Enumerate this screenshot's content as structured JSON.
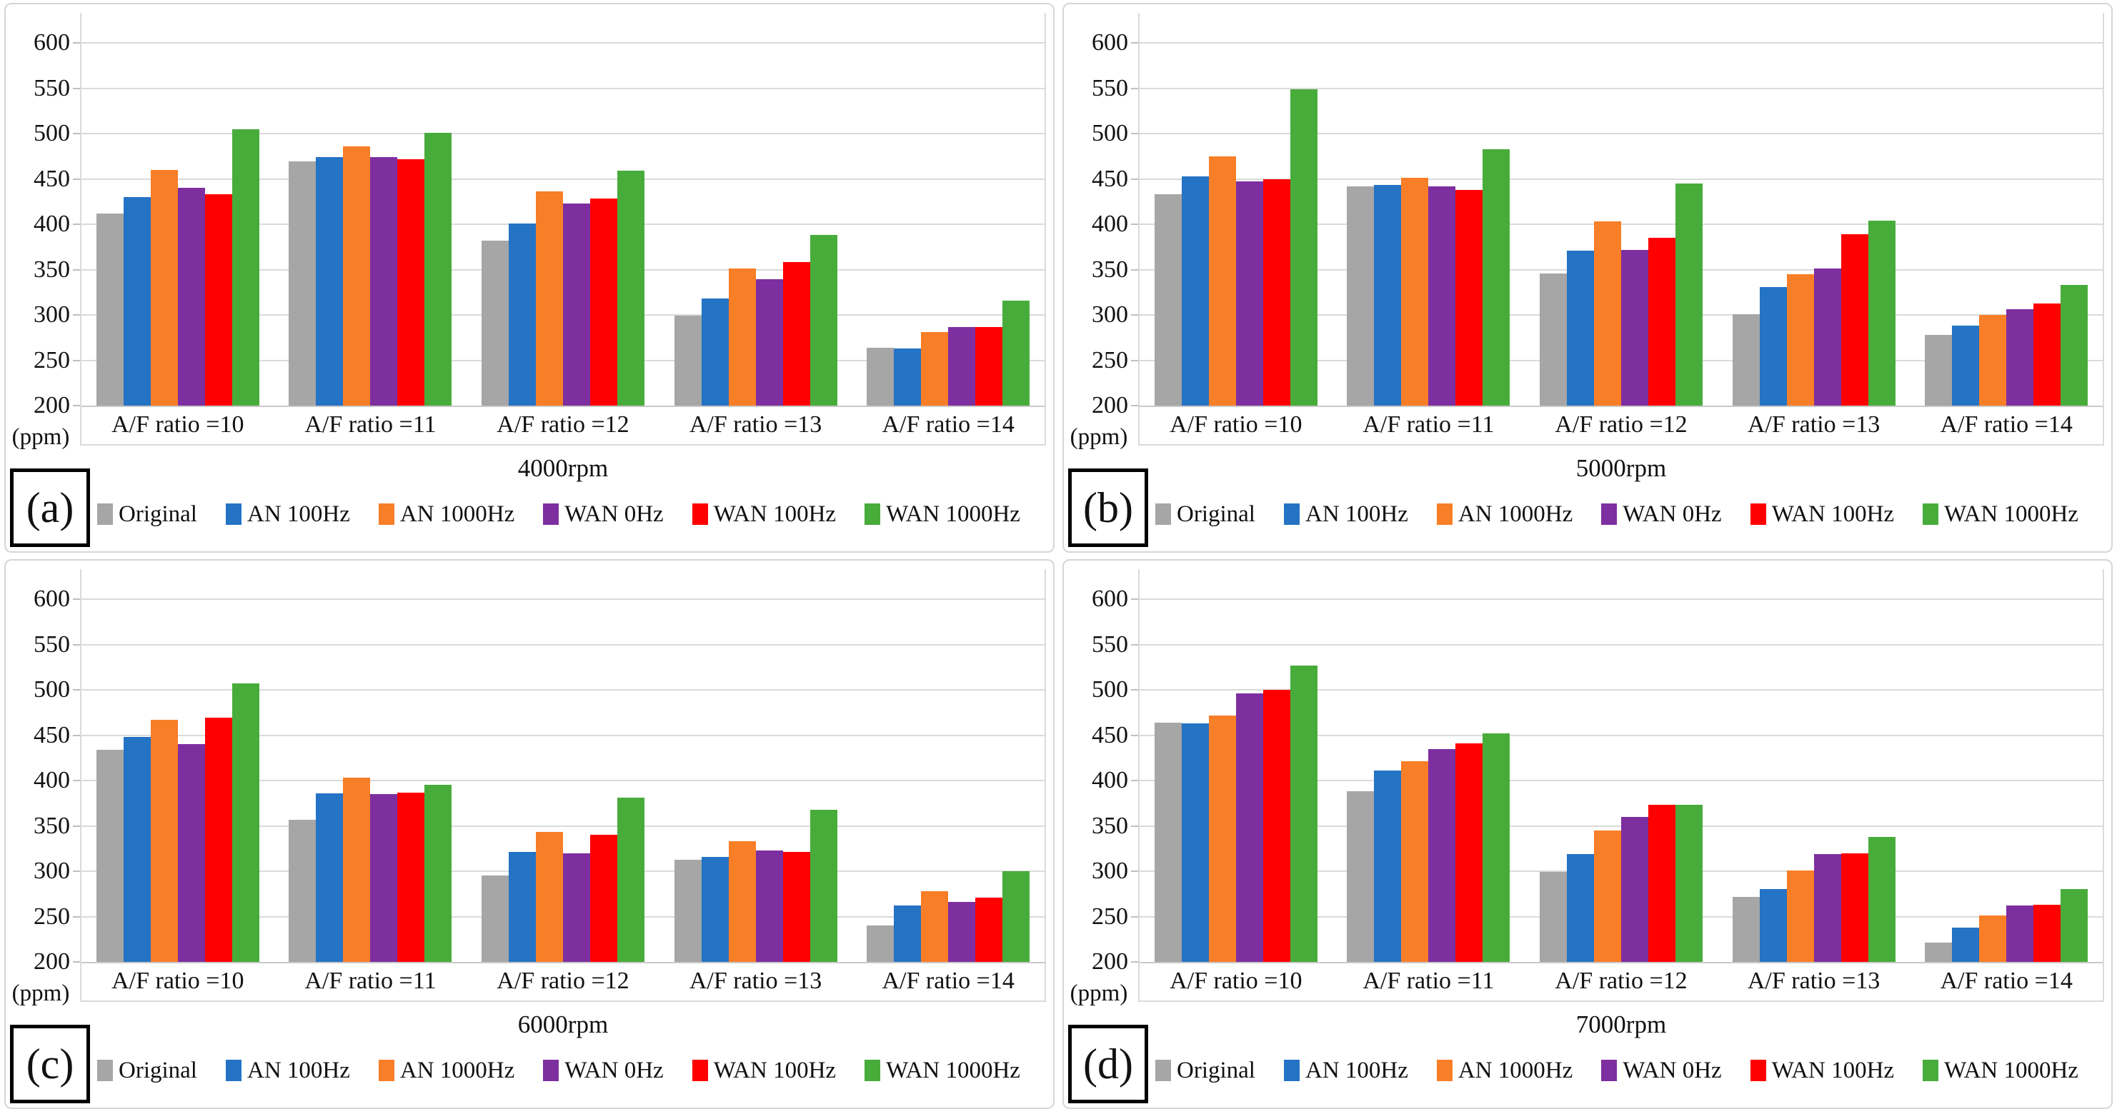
{
  "figure": {
    "y_axis_unit": "(ppm)",
    "series_names": [
      "Original",
      "AN 100Hz",
      "AN 1000Hz",
      "WAN 0Hz",
      "WAN 100Hz",
      "WAN 1000Hz"
    ],
    "series_colors": [
      "#A6A6A6",
      "#2473C5",
      "#F87E27",
      "#7D2FA0",
      "#FE0000",
      "#48AC3B"
    ],
    "gridline_color": "#DADADA"
  },
  "chart_data": [
    {
      "type": "bar",
      "panel_label": "(a)",
      "title": "4000rpm",
      "xlabel": "",
      "ylabel": "(ppm)",
      "ylim": [
        200,
        633
      ],
      "yticks": [
        600,
        550,
        500,
        450,
        400,
        350,
        300,
        250,
        200
      ],
      "grid": true,
      "legend_position": "bottom",
      "categories": [
        "A/F ratio =10",
        "A/F ratio =11",
        "A/F ratio =12",
        "A/F ratio =13",
        "A/F ratio =14"
      ],
      "series": [
        {
          "name": "Original",
          "color": "#A6A6A6",
          "values": [
            412,
            469,
            382,
            299,
            264
          ]
        },
        {
          "name": "AN 100Hz",
          "color": "#2473C5",
          "values": [
            430,
            474,
            401,
            318,
            263
          ]
        },
        {
          "name": "AN 1000Hz",
          "color": "#F87E27",
          "values": [
            460,
            486,
            436,
            351,
            281
          ]
        },
        {
          "name": "WAN 0Hz",
          "color": "#7D2FA0",
          "values": [
            440,
            474,
            423,
            339,
            287
          ]
        },
        {
          "name": "WAN 100Hz",
          "color": "#FE0000",
          "values": [
            433,
            472,
            428,
            358,
            287
          ]
        },
        {
          "name": "WAN 1000Hz",
          "color": "#48AC3B",
          "values": [
            505,
            501,
            459,
            388,
            316
          ]
        }
      ]
    },
    {
      "type": "bar",
      "panel_label": "(b)",
      "title": "5000rpm",
      "xlabel": "",
      "ylabel": "(ppm)",
      "ylim": [
        200,
        633
      ],
      "yticks": [
        600,
        550,
        500,
        450,
        400,
        350,
        300,
        250,
        200
      ],
      "grid": true,
      "legend_position": "bottom",
      "categories": [
        "A/F ratio =10",
        "A/F ratio =11",
        "A/F ratio =12",
        "A/F ratio =13",
        "A/F ratio =14"
      ],
      "series": [
        {
          "name": "Original",
          "color": "#A6A6A6",
          "values": [
            433,
            442,
            346,
            301,
            278
          ]
        },
        {
          "name": "AN 100Hz",
          "color": "#2473C5",
          "values": [
            453,
            443,
            371,
            331,
            288
          ]
        },
        {
          "name": "AN 1000Hz",
          "color": "#F87E27",
          "values": [
            475,
            451,
            403,
            345,
            300
          ]
        },
        {
          "name": "WAN 0Hz",
          "color": "#7D2FA0",
          "values": [
            447,
            442,
            372,
            351,
            306
          ]
        },
        {
          "name": "WAN 100Hz",
          "color": "#FE0000",
          "values": [
            450,
            438,
            385,
            389,
            313
          ]
        },
        {
          "name": "WAN 1000Hz",
          "color": "#48AC3B",
          "values": [
            549,
            483,
            445,
            404,
            333
          ]
        }
      ]
    },
    {
      "type": "bar",
      "panel_label": "(c)",
      "title": "6000rpm",
      "xlabel": "",
      "ylabel": "(ppm)",
      "ylim": [
        200,
        633
      ],
      "yticks": [
        600,
        550,
        500,
        450,
        400,
        350,
        300,
        250,
        200
      ],
      "grid": true,
      "legend_position": "bottom",
      "categories": [
        "A/F ratio =10",
        "A/F ratio =11",
        "A/F ratio =12",
        "A/F ratio =13",
        "A/F ratio =14"
      ],
      "series": [
        {
          "name": "Original",
          "color": "#A6A6A6",
          "values": [
            434,
            357,
            295,
            313,
            240
          ]
        },
        {
          "name": "AN 100Hz",
          "color": "#2473C5",
          "values": [
            448,
            386,
            321,
            316,
            262
          ]
        },
        {
          "name": "AN 1000Hz",
          "color": "#F87E27",
          "values": [
            467,
            403,
            343,
            333,
            278
          ]
        },
        {
          "name": "WAN 0Hz",
          "color": "#7D2FA0",
          "values": [
            440,
            385,
            320,
            323,
            266
          ]
        },
        {
          "name": "WAN 100Hz",
          "color": "#FE0000",
          "values": [
            469,
            387,
            340,
            321,
            271
          ]
        },
        {
          "name": "WAN 1000Hz",
          "color": "#48AC3B",
          "values": [
            507,
            395,
            381,
            368,
            300
          ]
        }
      ]
    },
    {
      "type": "bar",
      "panel_label": "(d)",
      "title": "7000rpm",
      "xlabel": "",
      "ylabel": "(ppm)",
      "ylim": [
        200,
        633
      ],
      "yticks": [
        600,
        550,
        500,
        450,
        400,
        350,
        300,
        250,
        200
      ],
      "grid": true,
      "legend_position": "bottom",
      "categories": [
        "A/F ratio =10",
        "A/F ratio =11",
        "A/F ratio =12",
        "A/F ratio =13",
        "A/F ratio =14"
      ],
      "series": [
        {
          "name": "Original",
          "color": "#A6A6A6",
          "values": [
            464,
            388,
            299,
            272,
            221
          ]
        },
        {
          "name": "AN 100Hz",
          "color": "#2473C5",
          "values": [
            463,
            411,
            319,
            280,
            238
          ]
        },
        {
          "name": "AN 1000Hz",
          "color": "#F87E27",
          "values": [
            472,
            421,
            345,
            301,
            251
          ]
        },
        {
          "name": "WAN 0Hz",
          "color": "#7D2FA0",
          "values": [
            496,
            435,
            360,
            319,
            262
          ]
        },
        {
          "name": "WAN 100Hz",
          "color": "#FE0000",
          "values": [
            500,
            441,
            373,
            320,
            263
          ]
        },
        {
          "name": "WAN 1000Hz",
          "color": "#48AC3B",
          "values": [
            527,
            452,
            373,
            338,
            280
          ]
        }
      ]
    }
  ]
}
